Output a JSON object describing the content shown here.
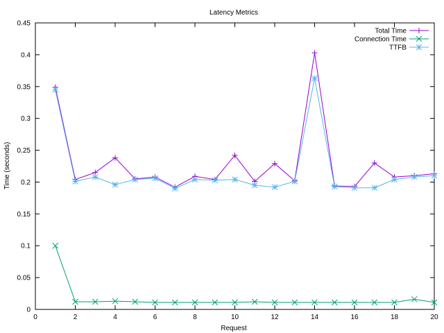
{
  "chart_data": {
    "type": "line",
    "title": "Latency Metrics",
    "xlabel": "Request",
    "ylabel": "Time (seconds)",
    "xlim": [
      0,
      20
    ],
    "ylim": [
      0,
      0.45
    ],
    "x_ticks": [
      "0",
      "2",
      "4",
      "6",
      "8",
      "10",
      "12",
      "14",
      "16",
      "18",
      "20"
    ],
    "y_ticks": [
      "0",
      "0.05",
      "0.1",
      "0.15",
      "0.2",
      "0.25",
      "0.3",
      "0.35",
      "0.4",
      "0.45"
    ],
    "grid": false,
    "legend_position": "top-right",
    "x": [
      1,
      2,
      3,
      4,
      5,
      6,
      7,
      8,
      9,
      10,
      11,
      12,
      13,
      14,
      15,
      16,
      17,
      18,
      19,
      20
    ],
    "series": [
      {
        "name": "Total Time",
        "color": "#9400d3",
        "marker": "plus",
        "values": [
          0.349,
          0.204,
          0.215,
          0.238,
          0.205,
          0.208,
          0.192,
          0.209,
          0.204,
          0.242,
          0.201,
          0.229,
          0.202,
          0.403,
          0.194,
          0.193,
          0.23,
          0.208,
          0.21,
          0.213
        ]
      },
      {
        "name": "Connection Time",
        "color": "#009e73",
        "marker": "cross",
        "values": [
          0.1,
          0.012,
          0.012,
          0.013,
          0.012,
          0.011,
          0.011,
          0.011,
          0.011,
          0.011,
          0.012,
          0.011,
          0.011,
          0.011,
          0.011,
          0.011,
          0.011,
          0.011,
          0.016,
          0.011
        ]
      },
      {
        "name": "TTFB",
        "color": "#56b4e9",
        "marker": "star",
        "values": [
          0.345,
          0.201,
          0.208,
          0.196,
          0.204,
          0.206,
          0.19,
          0.204,
          0.203,
          0.204,
          0.195,
          0.192,
          0.201,
          0.363,
          0.193,
          0.191,
          0.191,
          0.204,
          0.208,
          0.21
        ]
      }
    ]
  }
}
